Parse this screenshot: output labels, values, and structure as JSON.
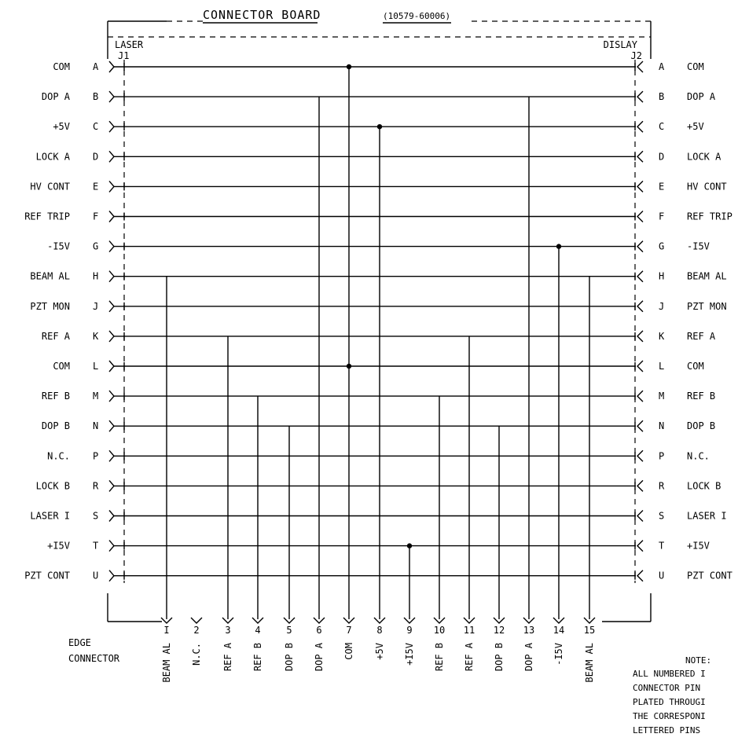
{
  "title": "CONNECTOR BOARD",
  "part_number": "(10579-60006)",
  "left_connector": {
    "label": "LASER",
    "ref": "J1"
  },
  "right_connector": {
    "label": "DISLAY",
    "ref": "J2"
  },
  "rows": [
    {
      "letter": "A",
      "left": "COM",
      "right": "COM"
    },
    {
      "letter": "B",
      "left": "DOP A",
      "right": "DOP A"
    },
    {
      "letter": "C",
      "left": "+5V",
      "right": "+5V"
    },
    {
      "letter": "D",
      "left": "LOCK A",
      "right": "LOCK A"
    },
    {
      "letter": "E",
      "left": "HV CONT",
      "right": "HV CONT"
    },
    {
      "letter": "F",
      "left": "REF TRIP",
      "right": "REF TRIP"
    },
    {
      "letter": "G",
      "left": "-I5V",
      "right": "-I5V"
    },
    {
      "letter": "H",
      "left": "BEAM AL",
      "right": "BEAM AL"
    },
    {
      "letter": "J",
      "left": "PZT MON",
      "right": "PZT MON"
    },
    {
      "letter": "K",
      "left": "REF A",
      "right": "REF A"
    },
    {
      "letter": "L",
      "left": "COM",
      "right": "COM"
    },
    {
      "letter": "M",
      "left": "REF B",
      "right": "REF B"
    },
    {
      "letter": "N",
      "left": "DOP B",
      "right": "DOP B"
    },
    {
      "letter": "P",
      "left": "N.C.",
      "right": "N.C."
    },
    {
      "letter": "R",
      "left": "LOCK B",
      "right": "LOCK B"
    },
    {
      "letter": "S",
      "left": "LASER I",
      "right": "LASER I"
    },
    {
      "letter": "T",
      "left": "+I5V",
      "right": "+I5V"
    },
    {
      "letter": "U",
      "left": "PZT CONT",
      "right": "PZT CONT"
    }
  ],
  "edge_connector": {
    "label_line1": "EDGE",
    "label_line2": "CONNECTOR",
    "pins": [
      {
        "number": "I",
        "signal": "BEAM AL"
      },
      {
        "number": "2",
        "signal": "N.C."
      },
      {
        "number": "3",
        "signal": "REF A"
      },
      {
        "number": "4",
        "signal": "REF B"
      },
      {
        "number": "5",
        "signal": "DOP B"
      },
      {
        "number": "6",
        "signal": "DOP A"
      },
      {
        "number": "7",
        "signal": "COM"
      },
      {
        "number": "8",
        "signal": "+5V"
      },
      {
        "number": "9",
        "signal": "+I5V"
      },
      {
        "number": "10",
        "signal": "REF B"
      },
      {
        "number": "11",
        "signal": "REF A"
      },
      {
        "number": "12",
        "signal": "DOP B"
      },
      {
        "number": "13",
        "signal": "DOP A"
      },
      {
        "number": "14",
        "signal": "-I5V"
      },
      {
        "number": "15",
        "signal": "BEAM AL"
      }
    ]
  },
  "note": {
    "heading": "NOTE:",
    "lines": [
      "ALL NUMBERED I",
      "CONNECTOR PIN",
      "PLATED THROUGI",
      "THE CORRESPONI",
      "LETTERED PINS"
    ]
  }
}
